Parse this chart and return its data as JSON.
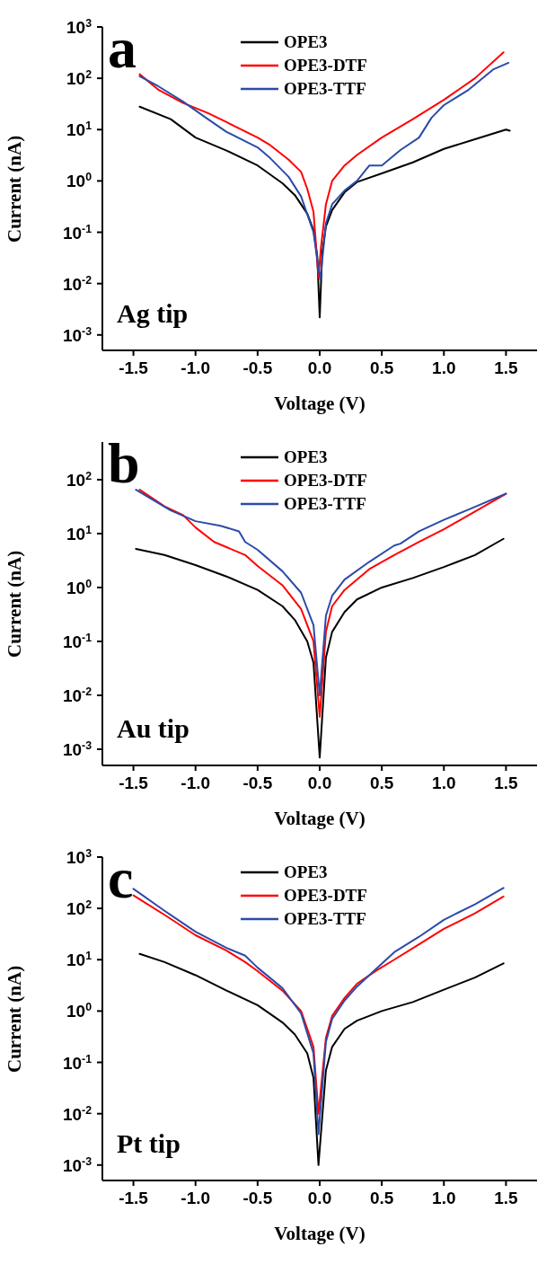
{
  "chart_data": [
    {
      "type": "line",
      "xlabel": "Voltage (V)",
      "ylabel": "Current (nA)",
      "log": "y",
      "legend": "top",
      "marker": "none",
      "line_style": "solid",
      "annotations": [
        "a",
        "Ag tip"
      ],
      "xlim": [
        -1.75,
        1.75
      ],
      "xticks": [
        {
          "value": -1.5,
          "label": "-1.5"
        },
        {
          "value": -1,
          "label": "-1.0"
        },
        {
          "value": -0.5,
          "label": "-0.5"
        },
        {
          "value": 0,
          "label": "0.0"
        },
        {
          "value": 0.5,
          "label": "0.5"
        },
        {
          "value": 1,
          "label": "1.0"
        },
        {
          "value": 1.5,
          "label": "1.5"
        }
      ],
      "ylim": [
        0.0005,
        1000
      ],
      "yticks": [
        {
          "value": 0.001,
          "label": "10$^{-3}$"
        },
        {
          "value": 0.01,
          "label": "10$^{-2}$"
        },
        {
          "value": 0.1,
          "label": "10$^{-1}$"
        },
        {
          "value": 1,
          "label": "10$^{0}$"
        },
        {
          "value": 10,
          "label": "10$^{1}$"
        },
        {
          "value": 100,
          "label": "10$^{2}$"
        },
        {
          "value": 1000,
          "label": "10$^{3}$"
        }
      ],
      "series": [
        {
          "name": "OPE3",
          "color": "#000000",
          "x": [
            -1.45,
            -1.2,
            -1,
            -0.75,
            -0.5,
            -0.3,
            -0.2,
            -0.1,
            -0.05,
            -0.02,
            0,
            0.02,
            0.05,
            0.1,
            0.2,
            0.3,
            0.5,
            0.75,
            1,
            1.25,
            1.5,
            1.53
          ],
          "values": [
            28,
            16,
            7,
            3.9,
            2,
            0.9,
            0.53,
            0.23,
            0.11,
            0.035,
            0.0022,
            0.04,
            0.13,
            0.27,
            0.6,
            0.95,
            1.4,
            2.3,
            4.2,
            6.5,
            10,
            9.5
          ]
        },
        {
          "name": "OPE3-DTF",
          "color": "#ff0000",
          "x": [
            -1.45,
            -1.3,
            -1.1,
            -0.9,
            -0.75,
            -0.5,
            -0.4,
            -0.25,
            -0.15,
            -0.1,
            -0.05,
            -0.01,
            0.01,
            0.05,
            0.1,
            0.2,
            0.3,
            0.5,
            0.75,
            1,
            1.25,
            1.48
          ],
          "values": [
            120,
            60,
            33,
            21,
            14,
            7,
            5,
            2.6,
            1.5,
            0.7,
            0.25,
            0.013,
            0.05,
            0.35,
            1,
            2,
            3.2,
            7,
            16,
            38,
            100,
            320
          ]
        },
        {
          "name": "OPE3-TTF",
          "color": "#2b4ba8",
          "x": [
            -1.45,
            -1.3,
            -1.1,
            -0.9,
            -0.75,
            -0.5,
            -0.4,
            -0.25,
            -0.15,
            -0.05,
            -0.01,
            0.005,
            0.05,
            0.1,
            0.2,
            0.3,
            0.4,
            0.5,
            0.65,
            0.8,
            0.9,
            1,
            1.2,
            1.4,
            1.52
          ],
          "values": [
            110,
            70,
            35,
            16,
            9,
            4.5,
            2.8,
            1.2,
            0.5,
            0.1,
            0.02,
            0.012,
            0.15,
            0.35,
            0.65,
            1,
            2,
            2,
            4,
            7,
            17,
            30,
            60,
            150,
            200
          ]
        }
      ]
    },
    {
      "type": "line",
      "xlabel": "Voltage (V)",
      "ylabel": "Current (nA)",
      "log": "y",
      "legend": "top",
      "marker": "none",
      "line_style": "solid",
      "annotations": [
        "b",
        "Au tip"
      ],
      "xlim": [
        -1.75,
        1.75
      ],
      "xticks": [
        {
          "value": -1.5,
          "label": "-1.5"
        },
        {
          "value": -1,
          "label": "-1.0"
        },
        {
          "value": -0.5,
          "label": "-0.5"
        },
        {
          "value": 0,
          "label": "0.0"
        },
        {
          "value": 0.5,
          "label": "0.5"
        },
        {
          "value": 1,
          "label": "1.0"
        },
        {
          "value": 1.5,
          "label": "1.5"
        }
      ],
      "ylim": [
        0.0005,
        500
      ],
      "yticks": [
        {
          "value": 0.001,
          "label": "10$^{-3}$"
        },
        {
          "value": 0.01,
          "label": "10$^{-2}$"
        },
        {
          "value": 0.1,
          "label": "10$^{-1}$"
        },
        {
          "value": 1,
          "label": "10$^{0}$"
        },
        {
          "value": 10,
          "label": "10$^{1}$"
        },
        {
          "value": 100,
          "label": "10$^{2}$"
        }
      ],
      "series": [
        {
          "name": "OPE3",
          "color": "#000000",
          "x": [
            -1.48,
            -1.25,
            -1,
            -0.75,
            -0.5,
            -0.3,
            -0.2,
            -0.1,
            -0.05,
            0,
            0.05,
            0.1,
            0.2,
            0.3,
            0.5,
            0.75,
            1,
            1.25,
            1.48
          ],
          "values": [
            5.2,
            4,
            2.6,
            1.6,
            0.9,
            0.45,
            0.25,
            0.1,
            0.04,
            0.0007,
            0.05,
            0.15,
            0.35,
            0.6,
            1,
            1.5,
            2.4,
            4,
            8
          ]
        },
        {
          "name": "OPE3-DTF",
          "color": "#ff0000",
          "x": [
            -1.45,
            -1.25,
            -1.1,
            -1,
            -0.85,
            -0.6,
            -0.5,
            -0.3,
            -0.15,
            -0.05,
            0,
            0.05,
            0.1,
            0.2,
            0.4,
            0.6,
            0.8,
            1,
            1.2,
            1.5
          ],
          "values": [
            65,
            32,
            22,
            13,
            7,
            4,
            2.5,
            1.1,
            0.4,
            0.1,
            0.004,
            0.15,
            0.45,
            0.9,
            2.2,
            4,
            7,
            12,
            22,
            55
          ]
        },
        {
          "name": "OPE3-TTF",
          "color": "#2b4ba8",
          "x": [
            -1.48,
            -1.2,
            -1,
            -0.8,
            -0.65,
            -0.6,
            -0.5,
            -0.3,
            -0.15,
            -0.05,
            0,
            0.05,
            0.1,
            0.2,
            0.4,
            0.6,
            0.65,
            0.8,
            1,
            1.2,
            1.5
          ],
          "values": [
            65,
            27,
            17,
            14,
            11,
            7,
            5,
            2,
            0.8,
            0.2,
            0.01,
            0.3,
            0.7,
            1.4,
            3,
            6,
            6.5,
            11,
            18,
            28,
            55
          ]
        }
      ]
    },
    {
      "type": "line",
      "xlabel": "Voltage (V)",
      "ylabel": "Current (nA)",
      "log": "y",
      "legend": "top",
      "marker": "none",
      "line_style": "solid",
      "annotations": [
        "c",
        "Pt tip"
      ],
      "xlim": [
        -1.75,
        1.75
      ],
      "xticks": [
        {
          "value": -1.5,
          "label": "-1.5"
        },
        {
          "value": -1,
          "label": "-1.0"
        },
        {
          "value": -0.5,
          "label": "-0.5"
        },
        {
          "value": 0,
          "label": "0.0"
        },
        {
          "value": 0.5,
          "label": "0.5"
        },
        {
          "value": 1,
          "label": "1.0"
        },
        {
          "value": 1.5,
          "label": "1.5"
        }
      ],
      "ylim": [
        0.0005,
        1000
      ],
      "yticks": [
        {
          "value": 0.001,
          "label": "10$^{-3}$"
        },
        {
          "value": 0.01,
          "label": "10$^{-2}$"
        },
        {
          "value": 0.1,
          "label": "10$^{-1}$"
        },
        {
          "value": 1,
          "label": "10$^{0}$"
        },
        {
          "value": 10,
          "label": "10$^{1}$"
        },
        {
          "value": 100,
          "label": "10$^{2}$"
        },
        {
          "value": 1000,
          "label": "10$^{3}$"
        }
      ],
      "series": [
        {
          "name": "OPE3",
          "color": "#000000",
          "x": [
            -1.45,
            -1.25,
            -1,
            -0.75,
            -0.5,
            -0.3,
            -0.2,
            -0.1,
            -0.05,
            -0.01,
            0.05,
            0.1,
            0.2,
            0.3,
            0.5,
            0.75,
            1,
            1.25,
            1.48
          ],
          "values": [
            13,
            9,
            5,
            2.5,
            1.3,
            0.6,
            0.35,
            0.15,
            0.05,
            0.001,
            0.07,
            0.2,
            0.45,
            0.65,
            1,
            1.5,
            2.6,
            4.5,
            8.5
          ]
        },
        {
          "name": "OPE3-DTF",
          "color": "#ff0000",
          "x": [
            -1.5,
            -1.25,
            -1,
            -0.75,
            -0.6,
            -0.5,
            -0.3,
            -0.15,
            -0.05,
            -0.01,
            0.05,
            0.1,
            0.2,
            0.3,
            0.45,
            0.6,
            0.8,
            1,
            1.25,
            1.48
          ],
          "values": [
            180,
            75,
            30,
            15,
            9,
            6,
            2.5,
            1,
            0.2,
            0.01,
            0.3,
            0.8,
            1.8,
            3.4,
            6,
            10,
            20,
            40,
            80,
            170
          ]
        },
        {
          "name": "OPE3-TTF",
          "color": "#2b4ba8",
          "x": [
            -1.5,
            -1.25,
            -1,
            -0.75,
            -0.6,
            -0.5,
            -0.3,
            -0.15,
            -0.05,
            -0.01,
            0.05,
            0.1,
            0.2,
            0.3,
            0.45,
            0.6,
            0.8,
            1,
            1.25,
            1.48
          ],
          "values": [
            240,
            90,
            35,
            17,
            12,
            7,
            2.8,
            0.9,
            0.15,
            0.004,
            0.25,
            0.7,
            1.6,
            3,
            6.5,
            14,
            28,
            60,
            120,
            250
          ]
        }
      ]
    }
  ]
}
